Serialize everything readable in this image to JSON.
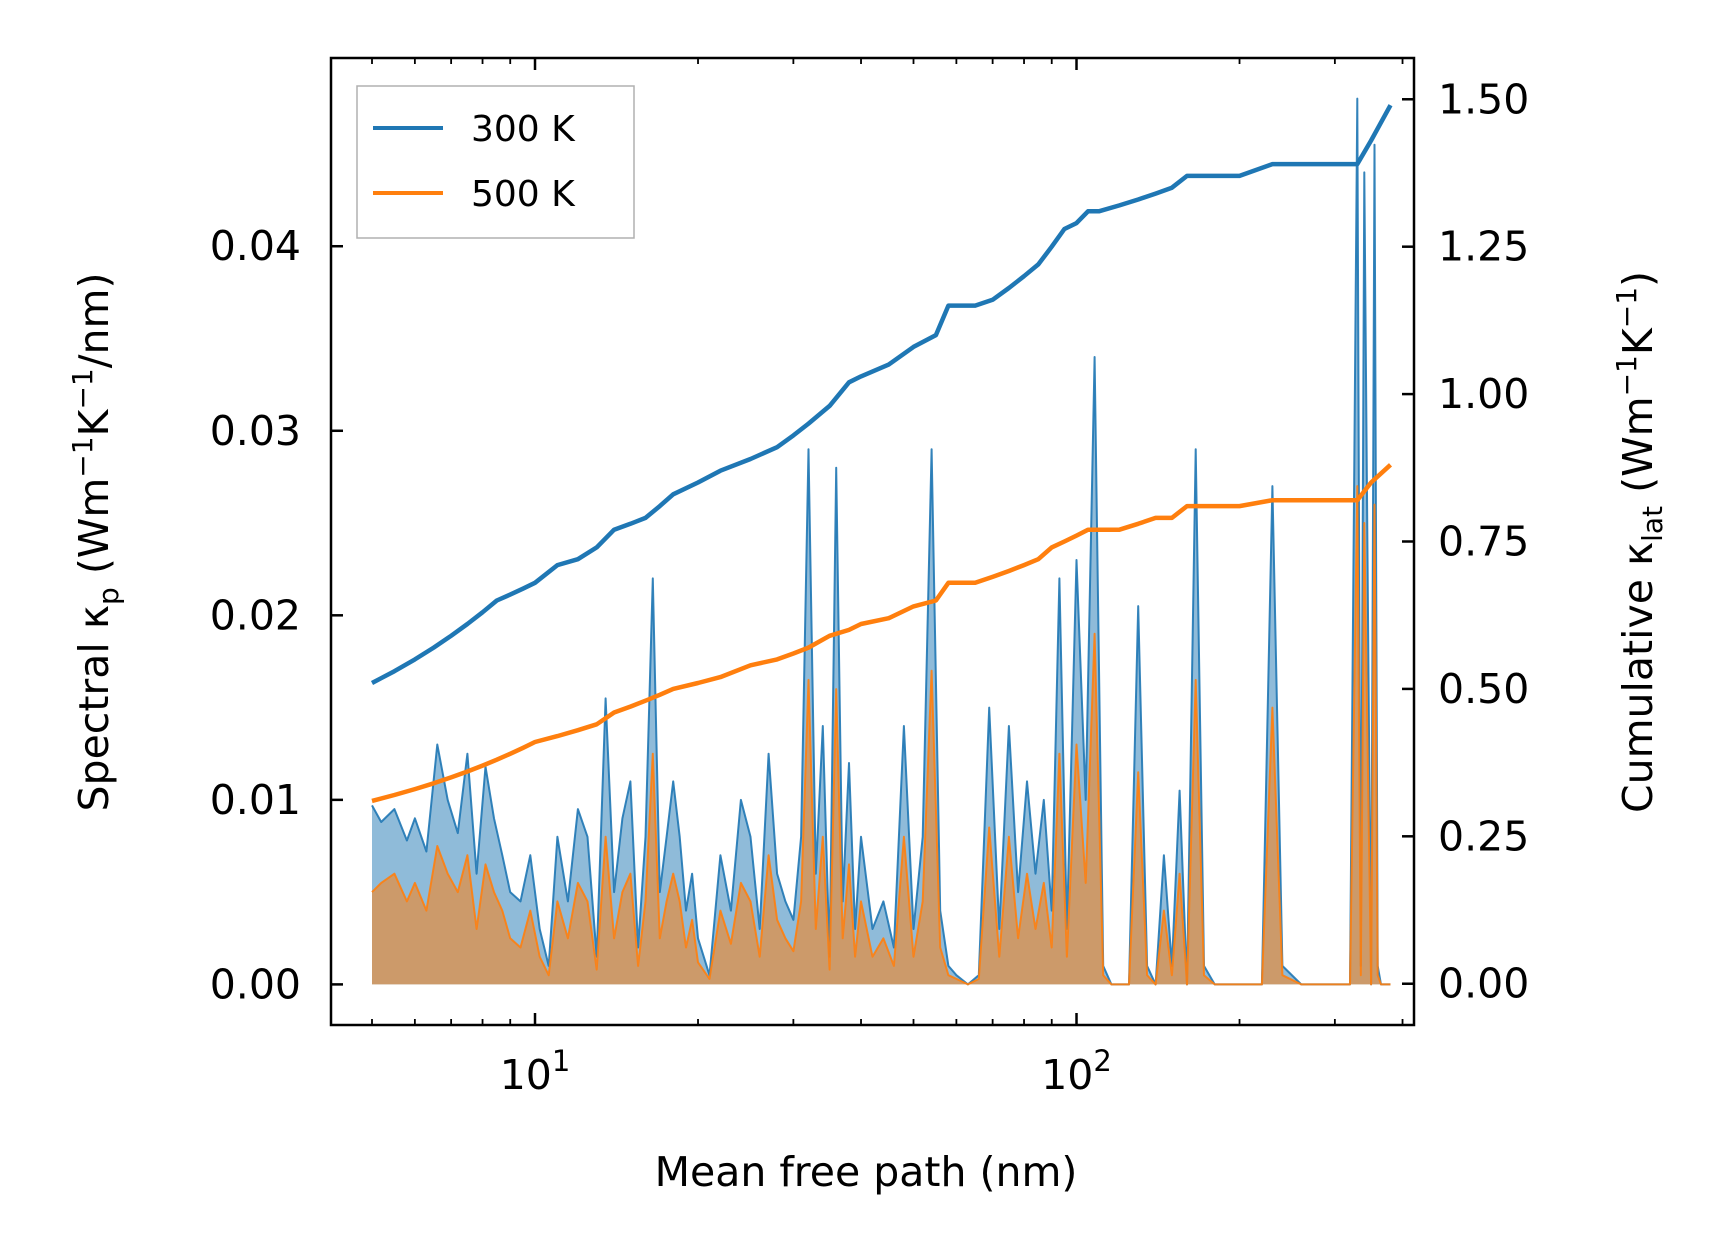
{
  "chart_data": {
    "type": "line",
    "xscale": "log",
    "xlabel": "Mean free path (nm)",
    "ylabel_left": {
      "base": "Spectral κ",
      "sub": "p",
      "unit": " (Wm",
      "sup1": "−1",
      "mid": "K",
      "sup2": "−1",
      "tail": "/nm)"
    },
    "ylabel_right": {
      "base": "Cumulative κ",
      "sub": "lat",
      "unit": " (Wm",
      "sup1": "−1",
      "mid": "K",
      "sup2": "−1",
      "tail": ")"
    },
    "xlim": [
      4.2,
      420
    ],
    "ylim_left": [
      -0.0022,
      0.0502
    ],
    "ylim_right": [
      -0.07,
      1.57
    ],
    "x_ticks": [
      {
        "value": 10,
        "base": "10",
        "exp": "1"
      },
      {
        "value": 100,
        "base": "10",
        "exp": "2"
      }
    ],
    "y_ticks_left": [
      {
        "value": 0.0,
        "label": "0.00"
      },
      {
        "value": 0.01,
        "label": "0.01"
      },
      {
        "value": 0.02,
        "label": "0.02"
      },
      {
        "value": 0.03,
        "label": "0.03"
      },
      {
        "value": 0.04,
        "label": "0.04"
      }
    ],
    "y_ticks_right": [
      {
        "value": 0.0,
        "label": "0.00"
      },
      {
        "value": 0.25,
        "label": "0.25"
      },
      {
        "value": 0.5,
        "label": "0.50"
      },
      {
        "value": 0.75,
        "label": "0.75"
      },
      {
        "value": 1.0,
        "label": "1.00"
      },
      {
        "value": 1.25,
        "label": "1.25"
      },
      {
        "value": 1.5,
        "label": "1.50"
      }
    ],
    "legend": {
      "position": "upper-left",
      "entries": [
        "300 K",
        "500 K"
      ]
    },
    "series": [
      {
        "name": "300 K",
        "color": "#1f77b4",
        "cumulative": {
          "x": [
            5,
            5.5,
            6,
            6.5,
            7,
            7.5,
            8,
            8.5,
            9,
            9.5,
            10,
            11,
            12,
            13,
            14,
            15,
            16,
            17,
            18,
            20,
            22,
            25,
            28,
            30,
            32,
            35,
            38,
            40,
            45,
            50,
            55,
            58,
            60,
            65,
            70,
            75,
            80,
            85,
            90,
            95,
            100,
            105,
            110,
            120,
            130,
            140,
            150,
            160,
            170,
            200,
            230,
            250,
            300,
            330,
            350,
            380
          ],
          "values": [
            0.51,
            0.53,
            0.55,
            0.57,
            0.59,
            0.61,
            0.63,
            0.65,
            0.66,
            0.67,
            0.68,
            0.71,
            0.72,
            0.74,
            0.77,
            0.78,
            0.79,
            0.81,
            0.83,
            0.85,
            0.87,
            0.89,
            0.91,
            0.93,
            0.95,
            0.98,
            1.02,
            1.03,
            1.05,
            1.08,
            1.1,
            1.15,
            1.15,
            1.15,
            1.16,
            1.18,
            1.2,
            1.22,
            1.25,
            1.28,
            1.29,
            1.31,
            1.31,
            1.32,
            1.33,
            1.34,
            1.35,
            1.37,
            1.37,
            1.37,
            1.39,
            1.39,
            1.39,
            1.39,
            1.43,
            1.49
          ]
        },
        "spectral": {
          "x": [
            5,
            5.2,
            5.5,
            5.8,
            6.0,
            6.3,
            6.6,
            6.9,
            7.2,
            7.5,
            7.8,
            8.1,
            8.4,
            8.7,
            9.0,
            9.4,
            9.8,
            10.2,
            10.6,
            11.0,
            11.5,
            12.0,
            12.5,
            13.0,
            13.5,
            14.0,
            14.5,
            15.0,
            15.5,
            16.0,
            16.5,
            17.0,
            17.5,
            18.0,
            18.5,
            19.0,
            19.5,
            20.0,
            21.0,
            22.0,
            23.0,
            24.0,
            25.0,
            26.0,
            27.0,
            28.0,
            29.0,
            30.0,
            31.0,
            32.0,
            33.0,
            34.0,
            35.0,
            36.0,
            37.0,
            38.0,
            39.0,
            40.0,
            42.0,
            44.0,
            46.0,
            48.0,
            50.0,
            52.0,
            54.0,
            56.0,
            58.0,
            60.0,
            63.0,
            66.0,
            69.0,
            72.0,
            75.0,
            78.0,
            81.0,
            84.0,
            87.0,
            90.0,
            93.0,
            96.0,
            100.0,
            104.0,
            108.0,
            112.0,
            116.0,
            120.0,
            125.0,
            130.0,
            135.0,
            140.0,
            145.0,
            150.0,
            155.0,
            160.0,
            166.0,
            172.0,
            180.0,
            200.0,
            220.0,
            230.0,
            240.0,
            260.0,
            300.0,
            320.0,
            330.0,
            335.0,
            340.0,
            350.0,
            355.0,
            360.0,
            365.0,
            380.0
          ],
          "values": [
            0.0097,
            0.0088,
            0.0095,
            0.0078,
            0.009,
            0.0072,
            0.013,
            0.01,
            0.0082,
            0.0125,
            0.006,
            0.0118,
            0.009,
            0.007,
            0.005,
            0.0045,
            0.007,
            0.003,
            0.001,
            0.008,
            0.0045,
            0.0095,
            0.008,
            0.0015,
            0.0155,
            0.005,
            0.009,
            0.011,
            0.002,
            0.008,
            0.022,
            0.005,
            0.008,
            0.011,
            0.008,
            0.004,
            0.006,
            0.0025,
            0.0005,
            0.007,
            0.004,
            0.01,
            0.008,
            0.003,
            0.0125,
            0.006,
            0.0045,
            0.0035,
            0.008,
            0.029,
            0.006,
            0.014,
            0.0015,
            0.028,
            0.0045,
            0.012,
            0.003,
            0.008,
            0.003,
            0.0045,
            0.002,
            0.014,
            0.003,
            0.008,
            0.029,
            0.004,
            0.001,
            0.0005,
            0.0,
            0.0005,
            0.015,
            0.003,
            0.014,
            0.005,
            0.011,
            0.006,
            0.01,
            0.004,
            0.022,
            0.003,
            0.023,
            0.01,
            0.034,
            0.001,
            0.0,
            0.0,
            0.0,
            0.0205,
            0.001,
            0.0,
            0.007,
            0.001,
            0.0105,
            0.0,
            0.029,
            0.001,
            0.0,
            0.0,
            0.0,
            0.027,
            0.001,
            0.0,
            0.0,
            0.0,
            0.048,
            0.001,
            0.044,
            0.0,
            0.0455,
            0.001,
            0.0,
            0.0
          ]
        }
      },
      {
        "name": "500 K",
        "color": "#ff7f0e",
        "cumulative": {
          "x": [
            5,
            5.5,
            6,
            6.5,
            7,
            7.5,
            8,
            8.5,
            9,
            9.5,
            10,
            11,
            12,
            13,
            14,
            15,
            16,
            17,
            18,
            20,
            22,
            25,
            28,
            30,
            32,
            35,
            38,
            40,
            45,
            50,
            55,
            58,
            60,
            65,
            70,
            75,
            80,
            85,
            90,
            95,
            100,
            105,
            110,
            120,
            130,
            140,
            150,
            160,
            170,
            200,
            230,
            250,
            300,
            330,
            350,
            380
          ],
          "values": [
            0.31,
            0.32,
            0.33,
            0.34,
            0.35,
            0.36,
            0.37,
            0.38,
            0.39,
            0.4,
            0.41,
            0.42,
            0.43,
            0.44,
            0.46,
            0.47,
            0.48,
            0.49,
            0.5,
            0.51,
            0.52,
            0.54,
            0.55,
            0.56,
            0.57,
            0.59,
            0.6,
            0.61,
            0.62,
            0.64,
            0.65,
            0.68,
            0.68,
            0.68,
            0.69,
            0.7,
            0.71,
            0.72,
            0.74,
            0.75,
            0.76,
            0.77,
            0.77,
            0.77,
            0.78,
            0.79,
            0.79,
            0.81,
            0.81,
            0.81,
            0.82,
            0.82,
            0.82,
            0.82,
            0.85,
            0.88
          ]
        },
        "spectral": {
          "x": [
            5,
            5.2,
            5.5,
            5.8,
            6.0,
            6.3,
            6.6,
            6.9,
            7.2,
            7.5,
            7.8,
            8.1,
            8.4,
            8.7,
            9.0,
            9.4,
            9.8,
            10.2,
            10.6,
            11.0,
            11.5,
            12.0,
            12.5,
            13.0,
            13.5,
            14.0,
            14.5,
            15.0,
            15.5,
            16.0,
            16.5,
            17.0,
            17.5,
            18.0,
            18.5,
            19.0,
            19.5,
            20.0,
            21.0,
            22.0,
            23.0,
            24.0,
            25.0,
            26.0,
            27.0,
            28.0,
            29.0,
            30.0,
            31.0,
            32.0,
            33.0,
            34.0,
            35.0,
            36.0,
            37.0,
            38.0,
            39.0,
            40.0,
            42.0,
            44.0,
            46.0,
            48.0,
            50.0,
            52.0,
            54.0,
            56.0,
            58.0,
            60.0,
            63.0,
            66.0,
            69.0,
            72.0,
            75.0,
            78.0,
            81.0,
            84.0,
            87.0,
            90.0,
            93.0,
            96.0,
            100.0,
            104.0,
            108.0,
            112.0,
            116.0,
            120.0,
            125.0,
            130.0,
            135.0,
            140.0,
            145.0,
            150.0,
            155.0,
            160.0,
            166.0,
            172.0,
            180.0,
            200.0,
            220.0,
            230.0,
            240.0,
            260.0,
            300.0,
            320.0,
            330.0,
            335.0,
            340.0,
            350.0,
            355.0,
            360.0,
            365.0,
            380.0
          ],
          "values": [
            0.005,
            0.0055,
            0.006,
            0.0045,
            0.0055,
            0.004,
            0.0075,
            0.006,
            0.005,
            0.007,
            0.003,
            0.0065,
            0.005,
            0.004,
            0.0025,
            0.002,
            0.004,
            0.0015,
            0.0005,
            0.0045,
            0.0025,
            0.0055,
            0.0045,
            0.0008,
            0.008,
            0.0025,
            0.005,
            0.006,
            0.001,
            0.0045,
            0.0125,
            0.0025,
            0.0045,
            0.006,
            0.0045,
            0.002,
            0.0035,
            0.0012,
            0.0003,
            0.004,
            0.0022,
            0.0055,
            0.0045,
            0.0015,
            0.007,
            0.0035,
            0.0025,
            0.0018,
            0.0045,
            0.0165,
            0.003,
            0.008,
            0.0008,
            0.016,
            0.0025,
            0.0065,
            0.0015,
            0.0045,
            0.0015,
            0.0025,
            0.001,
            0.008,
            0.0015,
            0.0045,
            0.017,
            0.002,
            0.0005,
            0.0003,
            0.0,
            0.0003,
            0.0085,
            0.0015,
            0.008,
            0.0025,
            0.006,
            0.003,
            0.0055,
            0.002,
            0.0125,
            0.0015,
            0.013,
            0.0055,
            0.019,
            0.0005,
            0.0,
            0.0,
            0.0,
            0.0115,
            0.0005,
            0.0,
            0.004,
            0.0005,
            0.006,
            0.0,
            0.0165,
            0.0005,
            0.0,
            0.0,
            0.0,
            0.015,
            0.0005,
            0.0,
            0.0,
            0.0,
            0.027,
            0.0005,
            0.025,
            0.0,
            0.026,
            0.0005,
            0.0,
            0.0
          ]
        }
      }
    ]
  }
}
